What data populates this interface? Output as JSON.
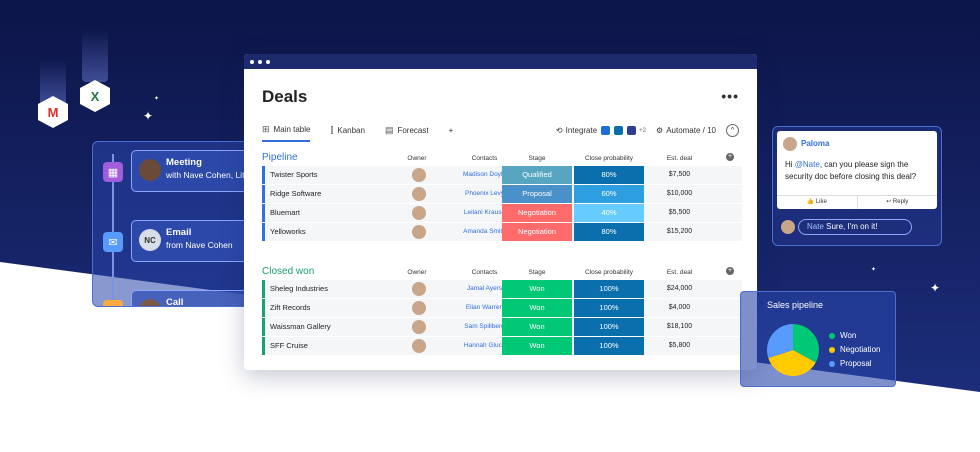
{
  "colors": {
    "navy": "#0f1a4e",
    "accent": "#2f6fde",
    "won": "#00c875",
    "negotiation": "#ff6b6b",
    "qualified": "#57a5c0",
    "proposal": "#4a90c9",
    "prob_dark": "#0b6fae",
    "prob_light": "#66ccff",
    "pipeline_green": "#1a9e77",
    "pipeline_blue": "#2f6fde"
  },
  "app_icons": [
    {
      "name": "gmail-icon",
      "glyph": "M",
      "color": "#d93025"
    },
    {
      "name": "excel-icon",
      "glyph": "X",
      "color": "#1d7a45"
    }
  ],
  "activity": {
    "items": [
      {
        "icon": "calendar-icon",
        "title": "Meeting",
        "subtitle": "with Nave Cohen, Lita",
        "avatar_initials": "",
        "icon_color": "#a25ddc"
      },
      {
        "icon": "mail-icon",
        "title": "Email",
        "subtitle": "from Nave Cohen",
        "avatar_initials": "NC",
        "icon_color": "#579bfc"
      },
      {
        "icon": "phone-icon",
        "title": "Call",
        "subtitle": "",
        "avatar_initials": "",
        "icon_color": "#fdab3d"
      }
    ]
  },
  "board": {
    "title": "Deals",
    "menu": "•••",
    "tabs": [
      {
        "label": "Main table",
        "icon": "table-icon"
      },
      {
        "label": "Kanban",
        "icon": "kanban-icon"
      },
      {
        "label": "Forecast",
        "icon": "calendar-icon"
      },
      {
        "label": "+",
        "icon": ""
      }
    ],
    "integrate_label": "Integrate",
    "integrate_more": "+2",
    "automate_label": "Automate / 10",
    "collapse_icon": "^"
  },
  "columns": {
    "owner": "Owner",
    "contacts": "Contacts",
    "stage": "Stage",
    "prob": "Close probability",
    "deal": "Est. deal"
  },
  "groups": [
    {
      "title": "Pipeline",
      "color": "#2f6fde",
      "rows": [
        {
          "name": "Twister Sports",
          "contact": "Madison Doyle",
          "stage": "Qualified",
          "stage_color": "#57a5c0",
          "prob": "80%",
          "prob_color": "#0b6fae",
          "deal": "$7,500"
        },
        {
          "name": "Ridge Software",
          "contact": "Phoenix Levy",
          "stage": "Proposal",
          "stage_color": "#4a90c9",
          "prob": "60%",
          "prob_color": "#2d9fe0",
          "deal": "$10,000"
        },
        {
          "name": "Bluemart",
          "contact": "Leilani Krause",
          "stage": "Negotiation",
          "stage_color": "#ff6b6b",
          "prob": "40%",
          "prob_color": "#66ccff",
          "deal": "$5,500"
        },
        {
          "name": "Yelloworks",
          "contact": "Amanda Smith",
          "stage": "Negotiation",
          "stage_color": "#ff6b6b",
          "prob": "80%",
          "prob_color": "#0b6fae",
          "deal": "$15,200"
        }
      ]
    },
    {
      "title": "Closed won",
      "color": "#1a9e77",
      "rows": [
        {
          "name": "Sheleg Industries",
          "contact": "Jamal Ayers",
          "stage": "Won",
          "stage_color": "#00c875",
          "prob": "100%",
          "prob_color": "#0b6fae",
          "deal": "$24,000"
        },
        {
          "name": "Zift Records",
          "contact": "Elian Warren",
          "stage": "Won",
          "stage_color": "#00c875",
          "prob": "100%",
          "prob_color": "#0b6fae",
          "deal": "$4,000"
        },
        {
          "name": "Waissman Gallery",
          "contact": "Sam Spillberg",
          "stage": "Won",
          "stage_color": "#00c875",
          "prob": "100%",
          "prob_color": "#0b6fae",
          "deal": "$18,100"
        },
        {
          "name": "SFF Cruise",
          "contact": "Hannah Gluck",
          "stage": "Won",
          "stage_color": "#00c875",
          "prob": "100%",
          "prob_color": "#0b6fae",
          "deal": "$5,800"
        }
      ]
    }
  ],
  "chat": {
    "name": "Paloma",
    "message_pre": "Hi ",
    "mention": "@Nate",
    "message_post": ", can you please sign the security doc before closing this deal?",
    "like_label": "Like",
    "reply_label": "Reply",
    "reply_mention": "Nate",
    "reply_text": " Sure, I'm on it!"
  },
  "sales": {
    "title": "Sales pipeline",
    "legend": [
      {
        "label": "Won",
        "color": "#00c875",
        "share": 0.33
      },
      {
        "label": "Negotiation",
        "color": "#ffcb00",
        "share": 0.37
      },
      {
        "label": "Proposal",
        "color": "#579bfc",
        "share": 0.3
      }
    ]
  }
}
